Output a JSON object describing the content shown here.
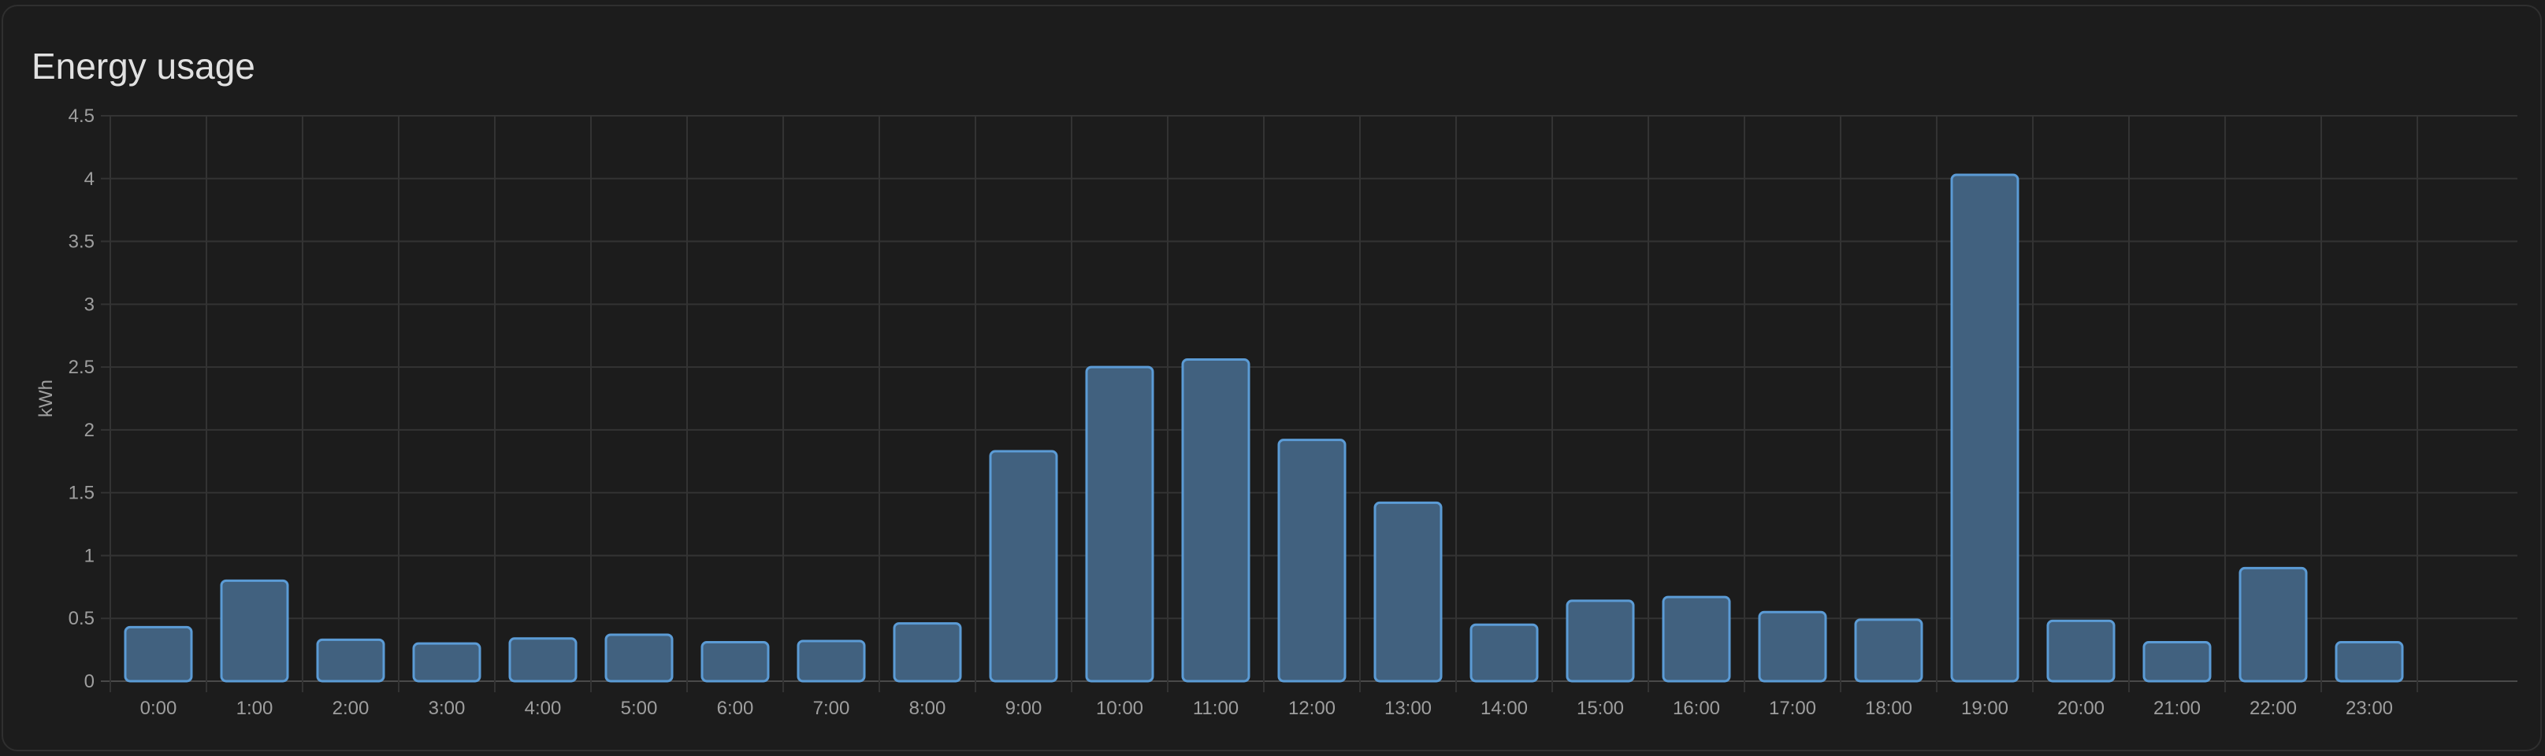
{
  "card": {
    "title": "Energy usage"
  },
  "chart_data": {
    "type": "bar",
    "title": "",
    "ylabel": "kWh",
    "xlabel": "",
    "ylim": [
      0,
      4.5
    ],
    "yticks": [
      0,
      0.5,
      1,
      1.5,
      2,
      2.5,
      3,
      3.5,
      4,
      4.5
    ],
    "categories": [
      "0:00",
      "1:00",
      "2:00",
      "3:00",
      "4:00",
      "5:00",
      "6:00",
      "7:00",
      "8:00",
      "9:00",
      "10:00",
      "11:00",
      "12:00",
      "13:00",
      "14:00",
      "15:00",
      "16:00",
      "17:00",
      "18:00",
      "19:00",
      "20:00",
      "21:00",
      "22:00",
      "23:00"
    ],
    "series": [
      {
        "values": [
          0.43,
          0.8,
          0.33,
          0.3,
          0.34,
          0.37,
          0.31,
          0.32,
          0.46,
          1.83,
          2.5,
          2.56,
          1.92,
          1.42,
          0.45,
          0.64,
          0.67,
          0.55,
          0.49,
          4.03,
          0.48,
          0.31,
          0.9,
          0.31
        ],
        "color": "#41617f",
        "stroke": "#5b9bd5"
      }
    ],
    "grid": true,
    "gridColor": "#333333",
    "axisColor": "#4a4a4a",
    "labelColor": "#9e9e9e",
    "legend": "none"
  }
}
